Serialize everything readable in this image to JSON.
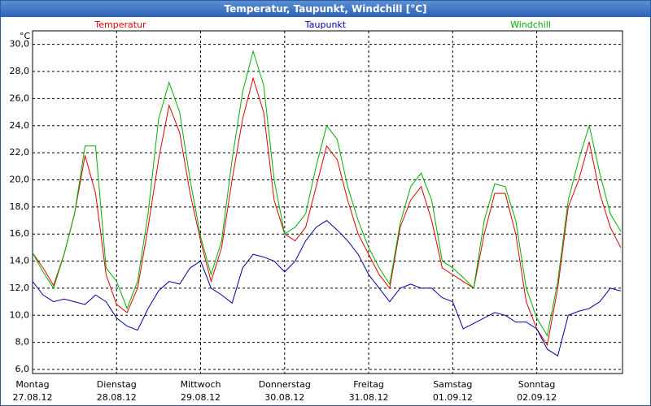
{
  "window_title": "Temperatur, Taupunkt, Windchill [°C]",
  "chart_data": {
    "type": "line",
    "y_unit": "°C",
    "xlim": [
      0,
      168.5
    ],
    "ylim": [
      5.7,
      31.0
    ],
    "yticks": [
      {
        "value": 6,
        "label": "6,0"
      },
      {
        "value": 8,
        "label": "8,0"
      },
      {
        "value": 10,
        "label": "10,0"
      },
      {
        "value": 12,
        "label": "12,0"
      },
      {
        "value": 14,
        "label": "14,0"
      },
      {
        "value": 16,
        "label": "16,0"
      },
      {
        "value": 18,
        "label": "18,0"
      },
      {
        "value": 20,
        "label": "20,0"
      },
      {
        "value": 22,
        "label": "22,0"
      },
      {
        "value": 24,
        "label": "24,0"
      },
      {
        "value": 26,
        "label": "26,0"
      },
      {
        "value": 28,
        "label": "28,0"
      },
      {
        "value": 30,
        "label": "30,0"
      }
    ],
    "xticks": [
      {
        "value": 0,
        "label": "Montag",
        "date": "27.08.12"
      },
      {
        "value": 24,
        "label": "Dienstag",
        "date": "28.08.12"
      },
      {
        "value": 48,
        "label": "Mittwoch",
        "date": "29.08.12"
      },
      {
        "value": 72,
        "label": "Donnerstag",
        "date": "30.08.12"
      },
      {
        "value": 96,
        "label": "Freitag",
        "date": "31.08.12"
      },
      {
        "value": 120,
        "label": "Samstag",
        "date": "01.09.12"
      },
      {
        "value": 144,
        "label": "Sonntag",
        "date": "02.09.12"
      }
    ],
    "grid": true,
    "x": [
      0,
      3,
      6,
      9,
      12,
      15,
      18,
      21,
      24,
      27,
      30,
      33,
      36,
      39,
      42,
      45,
      48,
      51,
      54,
      57,
      60,
      63,
      66,
      69,
      72,
      75,
      78,
      81,
      84,
      87,
      90,
      93,
      96,
      99,
      102,
      105,
      108,
      111,
      114,
      117,
      120,
      123,
      126,
      129,
      132,
      135,
      138,
      141,
      144,
      147,
      150,
      153,
      156,
      159,
      162,
      165,
      168
    ],
    "series": [
      {
        "name": "Temperatur",
        "color": "#e00000",
        "values": [
          14.6,
          13.5,
          12.2,
          14.5,
          17.5,
          21.8,
          19,
          13,
          10.8,
          10.2,
          12,
          16.5,
          21.5,
          25.5,
          23.5,
          19,
          15.5,
          12.5,
          15,
          20,
          24.5,
          27.5,
          25,
          18.5,
          16,
          15.5,
          16.5,
          19.5,
          22.5,
          21.5,
          18.5,
          16,
          14.5,
          13,
          12,
          16.5,
          18.5,
          19.5,
          17,
          13.5,
          13,
          12.5,
          12,
          16,
          19,
          19,
          16,
          11,
          9,
          7.8,
          12,
          18,
          20,
          22.8,
          19,
          16.5,
          15
        ]
      },
      {
        "name": "Taupunkt",
        "color": "#0000a0",
        "values": [
          12.5,
          11.5,
          11,
          11.2,
          11,
          10.8,
          11.5,
          11,
          9.8,
          9.2,
          8.9,
          10.5,
          11.8,
          12.5,
          12.3,
          13.5,
          14,
          12,
          11.5,
          10.9,
          13.5,
          14.5,
          14.3,
          14,
          13.2,
          14,
          15.5,
          16.5,
          17,
          16.3,
          15.5,
          14.5,
          13,
          12,
          11,
          12,
          12.3,
          12,
          12,
          11.3,
          11,
          9,
          9.4,
          9.8,
          10.2,
          10,
          9.5,
          9.5,
          9,
          7.5,
          7,
          10,
          10.3,
          10.5,
          11,
          12,
          11.8
        ]
      },
      {
        "name": "Windchill",
        "color": "#00b000",
        "values": [
          14.6,
          13.2,
          12,
          14.5,
          17.5,
          22.5,
          22.5,
          13.5,
          12.5,
          10.5,
          12.5,
          17.5,
          24.5,
          27.2,
          25,
          20,
          15.8,
          13,
          15.5,
          21.5,
          26.5,
          29.5,
          27,
          20,
          16,
          16.5,
          17.5,
          21,
          24,
          23,
          19.5,
          17,
          15,
          13.5,
          12.3,
          16.8,
          19.5,
          20.5,
          18.5,
          14,
          13.5,
          12.8,
          12,
          17,
          19.7,
          19.5,
          17,
          12,
          9.8,
          8.5,
          12.5,
          18.5,
          21.5,
          24,
          20.5,
          17.5,
          16.2
        ]
      }
    ]
  }
}
